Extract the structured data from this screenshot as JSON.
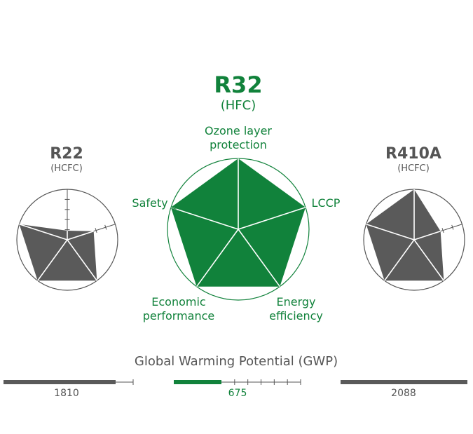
{
  "colors": {
    "green": "#11823b",
    "gray": "#5a5a5a",
    "line": "#555555"
  },
  "axes": [
    "Ozone layer\nprotection",
    "LCCP",
    "Energy\nefficiency",
    "Economic\nperformance",
    "Safety"
  ],
  "refrigerants": {
    "r32": {
      "name": "R32",
      "type": "(HFC)",
      "levels": [
        1,
        1,
        1,
        1,
        1
      ],
      "gwp": "675"
    },
    "r22": {
      "name": "R22",
      "type": "(HCFC)",
      "levels": [
        0.18,
        0.55,
        1,
        1,
        1
      ],
      "gwp": "1810"
    },
    "r410a": {
      "name": "R410A",
      "type": "(HCFC)",
      "levels": [
        1,
        0.55,
        1,
        1,
        1
      ],
      "gwp": "2088"
    }
  },
  "gwp": {
    "title": "Global Warming Potential (GWP)"
  }
}
